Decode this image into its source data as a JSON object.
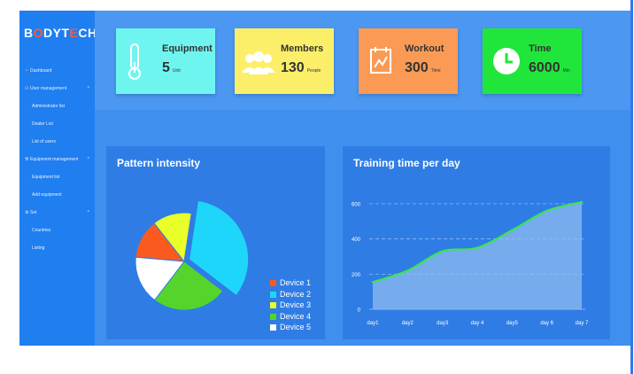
{
  "brand": {
    "logo_prefix": "B",
    "logo_accent": "O",
    "logo_rest": "DYT",
    "logo_accent2": "E",
    "logo_suffix": "CH"
  },
  "sidebar": {
    "items": [
      {
        "label": "Dashboard",
        "icon": "dashboard-icon",
        "level": "top"
      },
      {
        "label": "User management",
        "icon": "user-icon",
        "level": "top",
        "expanded": true
      },
      {
        "label": "Administrator list",
        "level": "sub"
      },
      {
        "label": "Dealer List",
        "level": "sub"
      },
      {
        "label": "List of users",
        "level": "sub"
      },
      {
        "label": "Equipment management",
        "icon": "wrench-icon",
        "level": "top",
        "expanded": true
      },
      {
        "label": "Equipment list",
        "level": "sub"
      },
      {
        "label": "Add equipment",
        "level": "sub"
      },
      {
        "label": "Set",
        "icon": "gear-icon",
        "level": "top",
        "expanded": true
      },
      {
        "label": "Countries",
        "level": "sub"
      },
      {
        "label": "Listing",
        "level": "sub"
      }
    ]
  },
  "cards": [
    {
      "title": "Equipment",
      "value": "5",
      "unit": "Unit",
      "icon": "thermometer-icon",
      "color": "#6ff5f0"
    },
    {
      "title": "Members",
      "value": "130",
      "unit": "People",
      "icon": "people-icon",
      "color": "#fbef69"
    },
    {
      "title": "Workout",
      "value": "300",
      "unit": "Time",
      "icon": "calendar-chart-icon",
      "color": "#fa9a55"
    },
    {
      "title": "Time",
      "value": "6000",
      "unit": "Min",
      "icon": "clock-icon",
      "color": "#20e63c"
    }
  ],
  "pie_panel": {
    "title": "Pattern intensity"
  },
  "line_panel": {
    "title": "Training time per day"
  },
  "chart_data": [
    {
      "type": "pie",
      "title": "Pattern intensity",
      "categories": [
        "Device 1",
        "Device 2",
        "Device 3",
        "Device 4",
        "Device 5"
      ],
      "values": [
        13,
        33,
        13,
        25,
        16
      ],
      "colors": [
        "#fb5a1e",
        "#1ed6fa",
        "#e9ff2a",
        "#55d52c",
        "#ffffff"
      ],
      "legend": "bottom-right"
    },
    {
      "type": "area",
      "title": "Training time per day",
      "categories": [
        "day1",
        "day2",
        "day3",
        "day 4",
        "day5",
        "day 6",
        "day 7"
      ],
      "values": [
        155,
        220,
        330,
        350,
        450,
        560,
        610
      ],
      "yticks": [
        0,
        200,
        400,
        600
      ],
      "ylim": [
        0,
        650
      ],
      "line_color": "#39e846",
      "grid": true
    }
  ]
}
